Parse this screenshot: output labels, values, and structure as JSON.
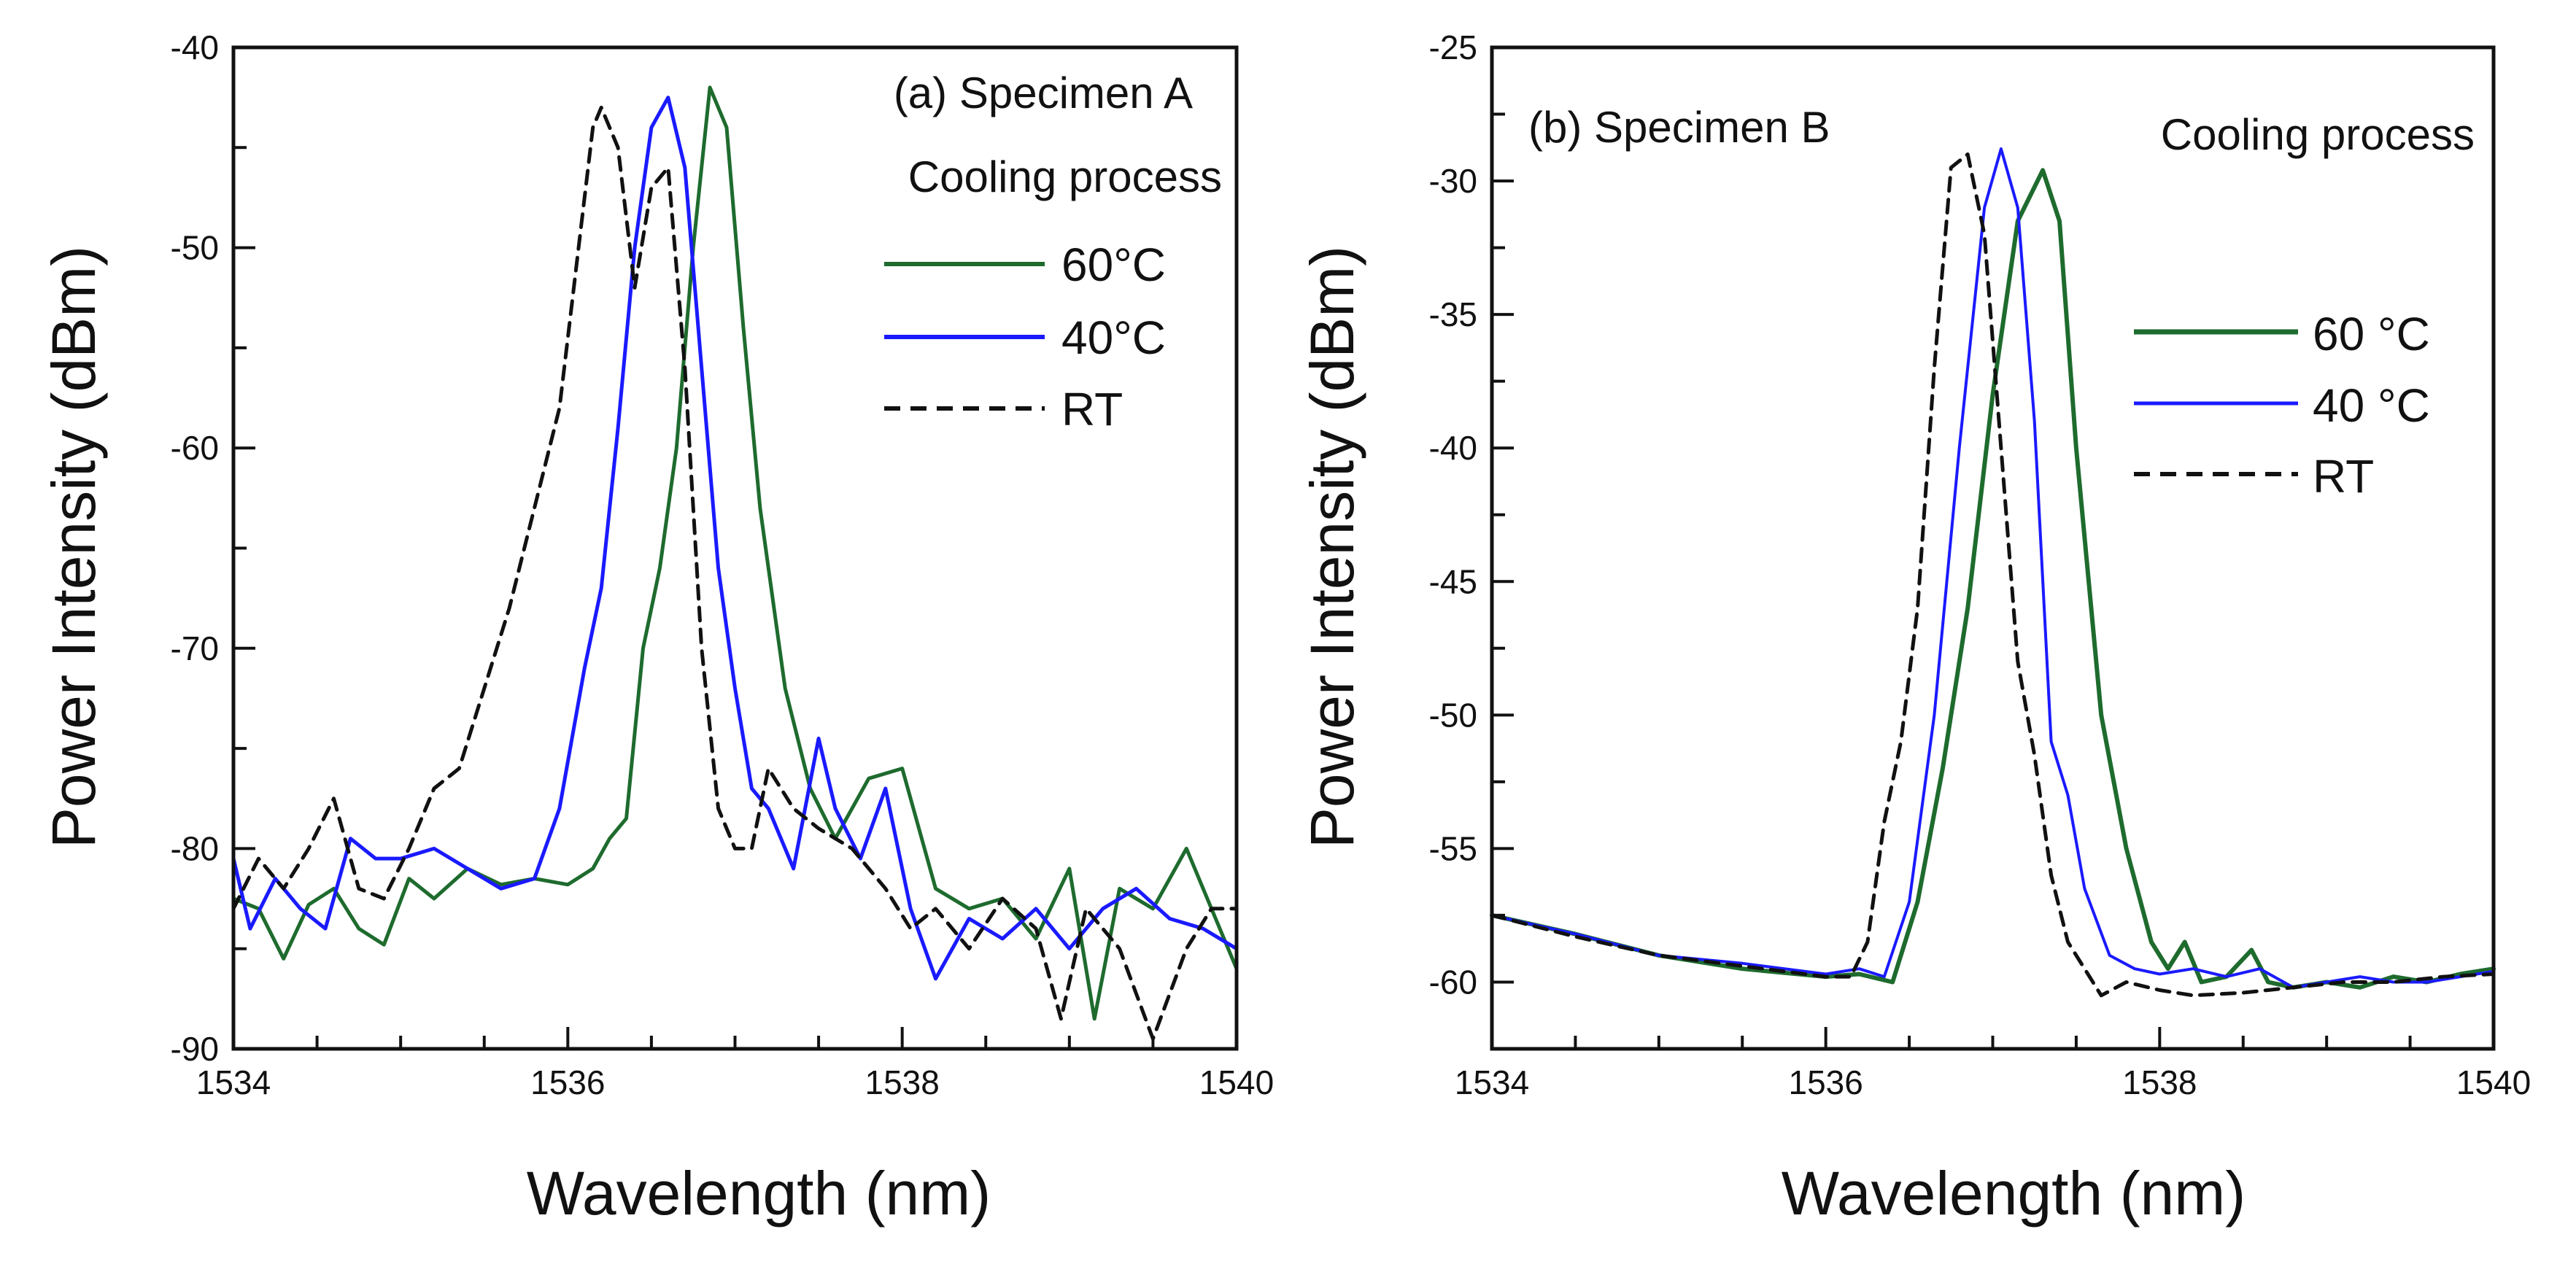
{
  "chart_data": [
    {
      "type": "line",
      "title": "(a) Specimen A",
      "subtitle": "Cooling process",
      "xlabel": "Wavelength (nm)",
      "ylabel": "Power Intensity (dBm)",
      "xlim": [
        1534,
        1540
      ],
      "ylim": [
        -90,
        -40
      ],
      "xticks": [
        1534,
        1536,
        1538,
        1540
      ],
      "yticks": [
        -90,
        -80,
        -70,
        -60,
        -50,
        -40
      ],
      "xtick_labels": [
        "1534",
        "1536",
        "1538",
        "1540"
      ],
      "ytick_labels": [
        "-90",
        "-80",
        "-70",
        "-60",
        "-50",
        "-40"
      ],
      "legend_position": "upper-right",
      "series": [
        {
          "name": "60°C",
          "color": "#1e6b2e",
          "dash": "solid",
          "x": [
            1534.0,
            1534.15,
            1534.3,
            1534.45,
            1534.6,
            1534.75,
            1534.9,
            1535.05,
            1535.2,
            1535.4,
            1535.6,
            1535.8,
            1536.0,
            1536.15,
            1536.25,
            1536.35,
            1536.45,
            1536.55,
            1536.65,
            1536.75,
            1536.85,
            1536.95,
            1537.05,
            1537.15,
            1537.3,
            1537.45,
            1537.6,
            1537.8,
            1538.0,
            1538.2,
            1538.4,
            1538.6,
            1538.8,
            1539.0,
            1539.15,
            1539.3,
            1539.5,
            1539.7,
            1539.85,
            1540.0
          ],
          "values": [
            -82.5,
            -83.0,
            -85.5,
            -82.8,
            -82.0,
            -84.0,
            -84.8,
            -81.5,
            -82.5,
            -81.0,
            -81.8,
            -81.5,
            -81.8,
            -81.0,
            -79.5,
            -78.5,
            -70.0,
            -66.0,
            -60.0,
            -50.0,
            -42.0,
            -44.0,
            -54.0,
            -63.0,
            -72.0,
            -77.0,
            -79.5,
            -76.5,
            -76.0,
            -82.0,
            -83.0,
            -82.5,
            -84.5,
            -81.0,
            -88.5,
            -82.0,
            -83.0,
            -80.0,
            -83.0,
            -86.0
          ]
        },
        {
          "name": "40°C",
          "color": "#1a1aff",
          "dash": "solid",
          "x": [
            1534.0,
            1534.1,
            1534.25,
            1534.4,
            1534.55,
            1534.7,
            1534.85,
            1535.0,
            1535.2,
            1535.4,
            1535.6,
            1535.8,
            1535.95,
            1536.1,
            1536.2,
            1536.3,
            1536.4,
            1536.5,
            1536.6,
            1536.7,
            1536.8,
            1536.9,
            1537.0,
            1537.1,
            1537.2,
            1537.35,
            1537.5,
            1537.6,
            1537.75,
            1537.9,
            1538.05,
            1538.2,
            1538.4,
            1538.6,
            1538.8,
            1539.0,
            1539.2,
            1539.4,
            1539.6,
            1539.8,
            1540.0
          ],
          "values": [
            -80.5,
            -84.0,
            -81.5,
            -83.0,
            -84.0,
            -79.5,
            -80.5,
            -80.5,
            -80.0,
            -81.0,
            -82.0,
            -81.5,
            -78.0,
            -71.0,
            -67.0,
            -59.0,
            -50.0,
            -44.0,
            -42.5,
            -46.0,
            -56.0,
            -66.0,
            -72.0,
            -77.0,
            -78.0,
            -81.0,
            -74.5,
            -78.0,
            -80.5,
            -77.0,
            -83.0,
            -86.5,
            -83.5,
            -84.5,
            -83.0,
            -85.0,
            -83.0,
            -82.0,
            -83.5,
            -84.0,
            -85.0
          ]
        },
        {
          "name": "RT",
          "color": "#111111",
          "dash": "dashed",
          "x": [
            1534.0,
            1534.15,
            1534.3,
            1534.45,
            1534.6,
            1534.75,
            1534.9,
            1535.05,
            1535.2,
            1535.35,
            1535.5,
            1535.65,
            1535.8,
            1535.95,
            1536.05,
            1536.15,
            1536.2,
            1536.3,
            1536.4,
            1536.5,
            1536.6,
            1536.7,
            1536.8,
            1536.9,
            1537.0,
            1537.1,
            1537.2,
            1537.35,
            1537.5,
            1537.7,
            1537.9,
            1538.05,
            1538.2,
            1538.4,
            1538.6,
            1538.8,
            1538.95,
            1539.1,
            1539.3,
            1539.5,
            1539.7,
            1539.85,
            1540.0
          ],
          "values": [
            -83.0,
            -80.5,
            -82.0,
            -80.0,
            -77.5,
            -82.0,
            -82.5,
            -80.0,
            -77.0,
            -76.0,
            -72.0,
            -68.0,
            -63.0,
            -58.0,
            -51.0,
            -44.0,
            -43.0,
            -45.0,
            -52.0,
            -47.0,
            -46.0,
            -56.0,
            -70.0,
            -78.0,
            -80.0,
            -80.0,
            -76.0,
            -78.0,
            -79.0,
            -80.0,
            -82.0,
            -84.0,
            -83.0,
            -85.0,
            -82.5,
            -84.0,
            -88.5,
            -83.0,
            -85.0,
            -89.5,
            -85.0,
            -83.0,
            -83.0
          ]
        }
      ]
    },
    {
      "type": "line",
      "title": "(b) Specimen B",
      "subtitle": "Cooling process",
      "xlabel": "Wavelength (nm)",
      "ylabel": "Power Intensity (dBm)",
      "xlim": [
        1534,
        1540
      ],
      "ylim": [
        -62.5,
        -25
      ],
      "xticks": [
        1534,
        1536,
        1538,
        1540
      ],
      "yticks": [
        -60,
        -55,
        -50,
        -45,
        -40,
        -35,
        -30,
        -25
      ],
      "xtick_labels": [
        "1534",
        "1536",
        "1538",
        "1540"
      ],
      "ytick_labels": [
        "-60",
        "-55",
        "-50",
        "-45",
        "-40",
        "-35",
        "-30",
        "-25"
      ],
      "legend_position": "center-right",
      "series": [
        {
          "name": "60 °C",
          "color": "#1e6b2e",
          "dash": "solid",
          "x": [
            1534.0,
            1534.5,
            1535.0,
            1535.5,
            1536.0,
            1536.2,
            1536.4,
            1536.55,
            1536.7,
            1536.85,
            1537.0,
            1537.15,
            1537.3,
            1537.4,
            1537.5,
            1537.65,
            1537.8,
            1537.95,
            1538.05,
            1538.15,
            1538.25,
            1538.4,
            1538.55,
            1538.65,
            1538.8,
            1539.0,
            1539.2,
            1539.4,
            1539.6,
            1539.8,
            1540.0
          ],
          "values": [
            -57.5,
            -58.2,
            -59.0,
            -59.5,
            -59.8,
            -59.7,
            -60.0,
            -57.0,
            -52.0,
            -46.0,
            -38.0,
            -31.5,
            -29.6,
            -31.5,
            -40.0,
            -50.0,
            -55.0,
            -58.5,
            -59.5,
            -58.5,
            -60.0,
            -59.8,
            -58.8,
            -60.0,
            -60.2,
            -60.0,
            -60.2,
            -59.8,
            -60.0,
            -59.7,
            -59.5
          ]
        },
        {
          "name": "40 °C",
          "color": "#1a1aff",
          "dash": "solid",
          "x": [
            1534.0,
            1534.5,
            1535.0,
            1535.5,
            1536.0,
            1536.2,
            1536.35,
            1536.5,
            1536.65,
            1536.8,
            1536.95,
            1537.05,
            1537.15,
            1537.25,
            1537.35,
            1537.45,
            1537.55,
            1537.7,
            1537.85,
            1538.0,
            1538.2,
            1538.4,
            1538.6,
            1538.8,
            1539.0,
            1539.2,
            1539.4,
            1539.6,
            1539.8,
            1540.0
          ],
          "values": [
            -57.5,
            -58.2,
            -59.0,
            -59.3,
            -59.7,
            -59.5,
            -59.8,
            -57.0,
            -50.0,
            -40.0,
            -31.0,
            -28.8,
            -31.0,
            -39.0,
            -51.0,
            -53.0,
            -56.5,
            -59.0,
            -59.5,
            -59.7,
            -59.5,
            -59.8,
            -59.5,
            -60.2,
            -60.0,
            -59.8,
            -60.0,
            -60.0,
            -59.8,
            -59.6
          ]
        },
        {
          "name": "RT",
          "color": "#111111",
          "dash": "dashed",
          "x": [
            1534.0,
            1534.5,
            1535.0,
            1535.5,
            1536.0,
            1536.15,
            1536.25,
            1536.35,
            1536.45,
            1536.55,
            1536.65,
            1536.75,
            1536.85,
            1536.95,
            1537.05,
            1537.15,
            1537.25,
            1537.35,
            1537.45,
            1537.55,
            1537.65,
            1537.8,
            1538.0,
            1538.2,
            1538.5,
            1538.8,
            1539.1,
            1539.4,
            1539.7,
            1540.0
          ],
          "values": [
            -57.5,
            -58.3,
            -59.0,
            -59.4,
            -59.8,
            -59.8,
            -58.5,
            -54.0,
            -51.0,
            -46.0,
            -37.0,
            -29.5,
            -29.0,
            -32.0,
            -40.0,
            -48.0,
            -51.5,
            -56.0,
            -58.5,
            -59.5,
            -60.5,
            -60.0,
            -60.3,
            -60.5,
            -60.4,
            -60.2,
            -60.0,
            -60.0,
            -59.8,
            -59.7
          ]
        }
      ]
    }
  ]
}
